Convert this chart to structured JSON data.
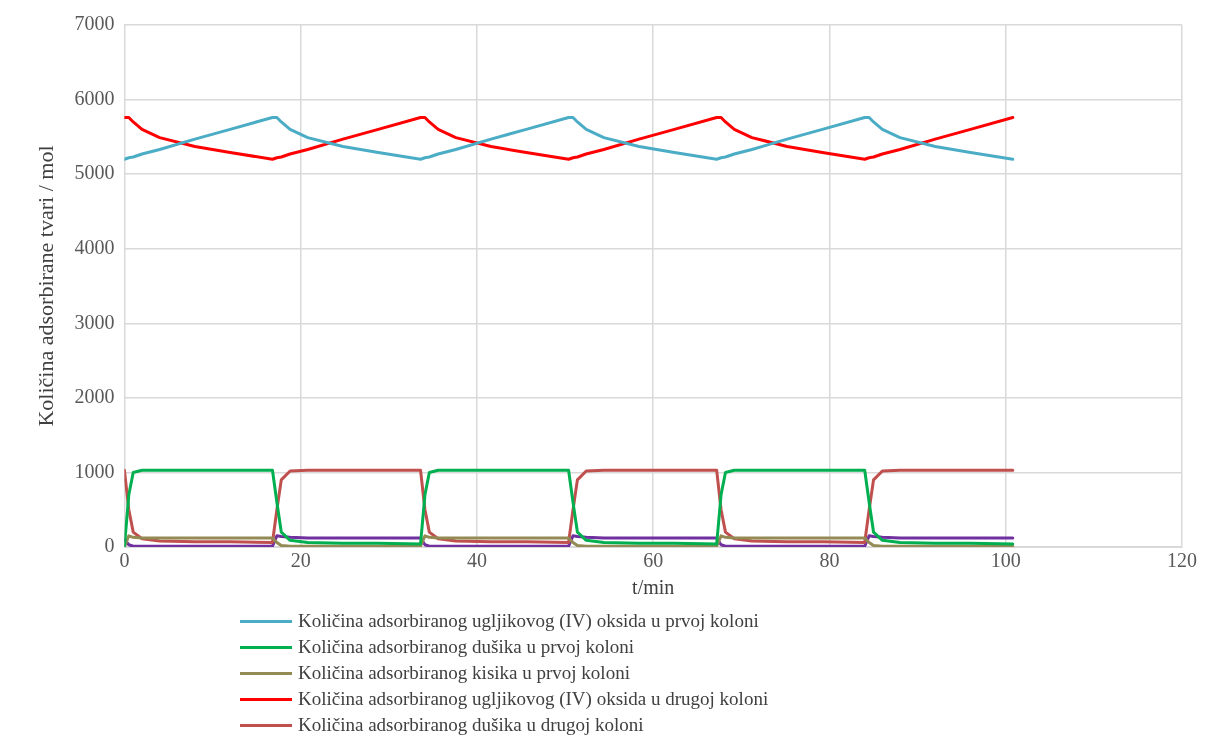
{
  "chart_data": {
    "type": "line",
    "xlabel": "t/min",
    "ylabel": "Količina adsorbirane tvari / mol",
    "x": [
      0,
      0.5,
      1,
      2,
      4,
      8,
      12,
      16.8,
      17.3,
      17.8,
      18.8,
      20.8,
      24.8,
      28.8,
      33.6,
      34.1,
      34.6,
      35.6,
      37.6,
      41.6,
      45.6,
      50.4,
      50.9,
      51.4,
      52.4,
      54.4,
      58.4,
      62.4,
      67.2,
      67.7,
      68.2,
      69.2,
      71.2,
      75.2,
      79.2,
      84,
      84.5,
      85,
      86,
      88,
      92,
      96,
      100.8
    ],
    "xlim": [
      0,
      120
    ],
    "xticks": [
      0,
      20,
      40,
      60,
      80,
      100,
      120
    ],
    "ylim": [
      0,
      7000
    ],
    "yticks": [
      0,
      1000,
      2000,
      3000,
      4000,
      5000,
      6000,
      7000
    ],
    "grid": true,
    "legend": "bottom",
    "marker": "none",
    "line_style": "solid",
    "series": [
      {
        "name": "Količina adsorbiranog ugljikovog (IV) oksida u prvoj koloni",
        "color": "#4bacc6",
        "values": [
          5200,
          5220,
          5230,
          5270,
          5330,
          5470,
          5600,
          5760,
          5760,
          5700,
          5600,
          5490,
          5370,
          5290,
          5200,
          5220,
          5230,
          5270,
          5330,
          5470,
          5600,
          5760,
          5760,
          5700,
          5600,
          5490,
          5370,
          5290,
          5200,
          5220,
          5230,
          5270,
          5330,
          5470,
          5600,
          5760,
          5760,
          5700,
          5600,
          5490,
          5370,
          5290,
          5200
        ]
      },
      {
        "name": "Količina adsorbiranog dušika u prvoj koloni",
        "color": "#00b050",
        "values": [
          0,
          700,
          1000,
          1030,
          1030,
          1030,
          1030,
          1030,
          600,
          200,
          90,
          60,
          50,
          50,
          40,
          700,
          1000,
          1030,
          1030,
          1030,
          1030,
          1030,
          600,
          200,
          90,
          60,
          50,
          50,
          40,
          700,
          1000,
          1030,
          1030,
          1030,
          1030,
          1030,
          600,
          200,
          90,
          60,
          50,
          50,
          40
        ]
      },
      {
        "name": "Količina adsorbiranog kisika u prvoj koloni",
        "color": "#948a54",
        "values": [
          0,
          150,
          130,
          120,
          120,
          120,
          120,
          120,
          60,
          20,
          10,
          10,
          10,
          10,
          10,
          150,
          130,
          120,
          120,
          120,
          120,
          120,
          60,
          20,
          10,
          10,
          10,
          10,
          10,
          150,
          130,
          120,
          120,
          120,
          120,
          120,
          60,
          20,
          10,
          10,
          10,
          10,
          10
        ]
      },
      {
        "name": "Količina adsorbiranog ugljikovog (IV) oksida u drugoj koloni",
        "color": "#ff0000",
        "values": [
          5760,
          5760,
          5700,
          5600,
          5490,
          5370,
          5290,
          5200,
          5220,
          5230,
          5270,
          5330,
          5470,
          5600,
          5760,
          5760,
          5700,
          5600,
          5490,
          5370,
          5290,
          5200,
          5220,
          5230,
          5270,
          5330,
          5470,
          5600,
          5760,
          5760,
          5700,
          5600,
          5490,
          5370,
          5290,
          5200,
          5220,
          5230,
          5270,
          5330,
          5470,
          5600,
          5760
        ]
      },
      {
        "name": "Količina adsorbiranog dušika u drugoj koloni",
        "color": "#c0504d",
        "values": [
          1030,
          500,
          200,
          110,
          80,
          70,
          70,
          60,
          500,
          900,
          1020,
          1030,
          1030,
          1030,
          1030,
          500,
          200,
          110,
          80,
          70,
          70,
          60,
          500,
          900,
          1020,
          1030,
          1030,
          1030,
          1030,
          500,
          200,
          110,
          80,
          70,
          70,
          60,
          500,
          900,
          1020,
          1030,
          1030,
          1030,
          1030
        ]
      },
      {
        "color": "#7030a0",
        "values": [
          100,
          30,
          10,
          10,
          10,
          10,
          10,
          10,
          150,
          140,
          130,
          120,
          120,
          120,
          120,
          30,
          10,
          10,
          10,
          10,
          10,
          10,
          150,
          140,
          130,
          120,
          120,
          120,
          120,
          30,
          10,
          10,
          10,
          10,
          10,
          10,
          150,
          140,
          130,
          120,
          120,
          120,
          120
        ]
      }
    ]
  }
}
